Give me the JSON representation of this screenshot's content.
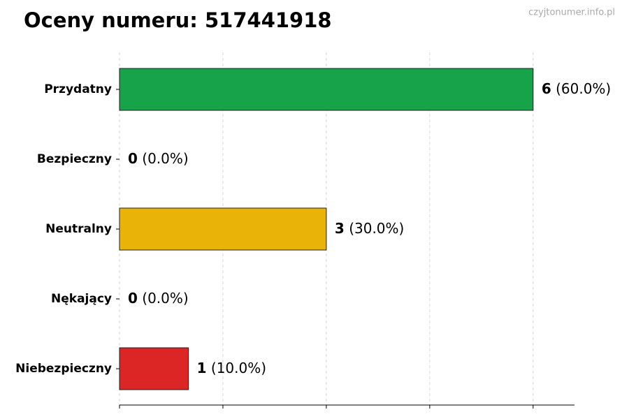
{
  "chart_data": {
    "type": "barh",
    "title": "Oceny numeru: 517441918",
    "watermark": "czyjtonumer.info.pl",
    "categories": [
      "Przydatny",
      "Bezpieczny",
      "Neutralny",
      "Nękający",
      "Niebezpieczny"
    ],
    "values": [
      6,
      0,
      3,
      0,
      1
    ],
    "percent_labels": [
      "(60.0%)",
      "(0.0%)",
      "(30.0%)",
      "(0.0%)",
      "(10.0%)"
    ],
    "colors": [
      "#16a34a",
      "#2563eb",
      "#eab308",
      "#f97316",
      "#dc2626"
    ],
    "xlim": [
      0,
      6.6
    ],
    "xticks": [
      0,
      1.5,
      3,
      4.5,
      6
    ],
    "grid": true
  }
}
